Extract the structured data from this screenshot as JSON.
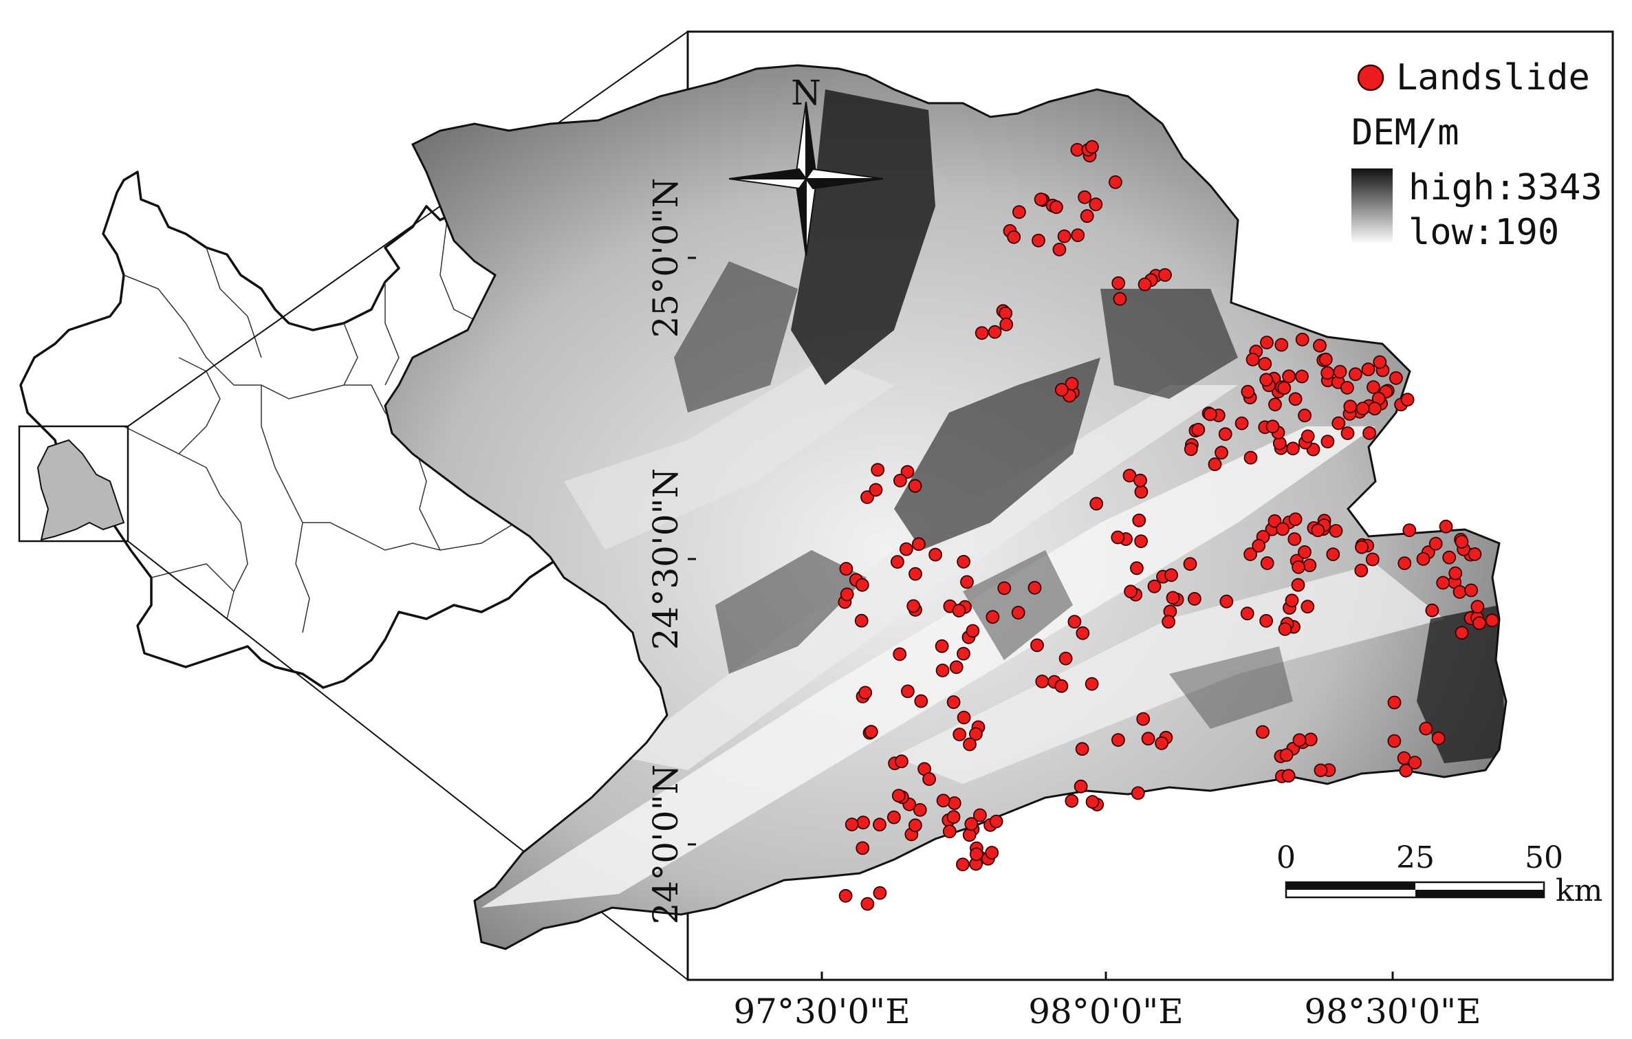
{
  "map": {
    "north_label": "N",
    "legend": {
      "landslide_label": "Landslide",
      "dem_title": "DEM/m",
      "high_label": "high:3343",
      "low_label": "low:190",
      "landslide_color": "#ee1c1c",
      "dem_high_color": "#111111",
      "dem_low_color": "#ffffff"
    },
    "latitude_labels": [
      "25°0'0\"N",
      "24°30'0\"N",
      "24°0'0\"N"
    ],
    "longitude_labels": [
      "97°30'0\"E",
      "98°0'0\"E",
      "98°30'0\"E"
    ],
    "scale_bar": {
      "labels": [
        "0",
        "25",
        "50"
      ],
      "unit": "km"
    },
    "icons": [
      "north-arrow-icon",
      "landslide-point-icon"
    ]
  }
}
